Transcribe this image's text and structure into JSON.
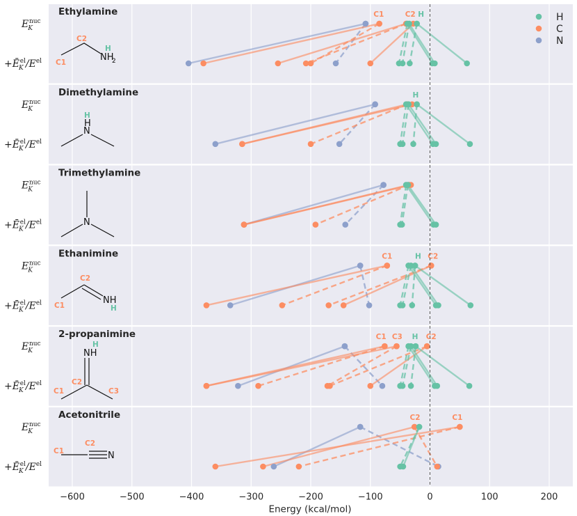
{
  "chart_data": {
    "type": "scatter",
    "xlabel": "Energy (kcal/mol)",
    "xlim": [
      -640,
      240
    ],
    "x_ticks": [
      -600,
      -500,
      -400,
      -300,
      -200,
      -100,
      0,
      100,
      200
    ],
    "x_tick_labels": [
      "−600",
      "−500",
      "−400",
      "−300",
      "−200",
      "−100",
      "0",
      "100",
      "200"
    ],
    "row_labels": {
      "top": "E",
      "top_sub": "K",
      "top_sup": "nuc",
      "bottom_prefix": "+Ē",
      "bottom_sub": "K",
      "bottom_sup": "el",
      "bottom_slash": "/E",
      "bottom_sup2": "el"
    },
    "legend": [
      {
        "label": "H",
        "color": "#66c2a5"
      },
      {
        "label": "C",
        "color": "#fc8d62"
      },
      {
        "label": "N",
        "color": "#8da0cb"
      }
    ],
    "colors": {
      "H": "#66c2a5",
      "C": "#fc8d62",
      "N": "#8da0cb"
    },
    "panels": [
      {
        "title": "Ethylamine",
        "structure": {
          "atoms": [
            "C1",
            "C2",
            "H",
            "NH",
            "2"
          ]
        },
        "top_labels": [
          {
            "text": "C1",
            "x": -86,
            "el": "C"
          },
          {
            "text": "C2",
            "x": -33,
            "el": "C"
          },
          {
            "text": "H",
            "x": -15,
            "el": "H"
          }
        ],
        "lines": [
          {
            "el": "N",
            "style": "solid",
            "top": -108,
            "bottom": -405
          },
          {
            "el": "N",
            "style": "dashed",
            "top": -108,
            "bottom": -158
          },
          {
            "el": "C",
            "style": "solid",
            "top": -85,
            "bottom": -380
          },
          {
            "el": "C",
            "style": "dashed",
            "top": -85,
            "bottom": -200
          },
          {
            "el": "C",
            "style": "solid",
            "top": -40,
            "bottom": -255
          },
          {
            "el": "C",
            "style": "dashed",
            "top": -40,
            "bottom": -208
          },
          {
            "el": "C",
            "style": "solid",
            "top": -28,
            "bottom": -100
          },
          {
            "el": "H",
            "style": "dashed",
            "top": -38,
            "bottom": -52
          },
          {
            "el": "H",
            "style": "dashed",
            "top": -35,
            "bottom": -46
          },
          {
            "el": "H",
            "style": "dashed",
            "top": -22,
            "bottom": -34
          },
          {
            "el": "H",
            "style": "solid",
            "top": -38,
            "bottom": 4
          },
          {
            "el": "H",
            "style": "solid",
            "top": -35,
            "bottom": 8
          },
          {
            "el": "H",
            "style": "solid",
            "top": -22,
            "bottom": 62
          }
        ]
      },
      {
        "title": "Dimethylamine",
        "structure": {
          "atoms": [
            "H",
            "H",
            "N"
          ]
        },
        "top_labels": [
          {
            "text": "H",
            "x": -24,
            "el": "H"
          }
        ],
        "lines": [
          {
            "el": "N",
            "style": "solid",
            "top": -92,
            "bottom": -360
          },
          {
            "el": "N",
            "style": "dashed",
            "top": -92,
            "bottom": -152
          },
          {
            "el": "C",
            "style": "solid",
            "top": -38,
            "bottom": -315
          },
          {
            "el": "C",
            "style": "dashed",
            "top": -38,
            "bottom": -200
          },
          {
            "el": "C",
            "style": "solid",
            "top": -30,
            "bottom": -315
          },
          {
            "el": "H",
            "style": "dashed",
            "top": -40,
            "bottom": -50
          },
          {
            "el": "H",
            "style": "dashed",
            "top": -36,
            "bottom": -46
          },
          {
            "el": "H",
            "style": "dashed",
            "top": -22,
            "bottom": -28
          },
          {
            "el": "H",
            "style": "solid",
            "top": -40,
            "bottom": 5
          },
          {
            "el": "H",
            "style": "solid",
            "top": -36,
            "bottom": 10
          },
          {
            "el": "H",
            "style": "solid",
            "top": -22,
            "bottom": 67
          }
        ]
      },
      {
        "title": "Trimethylamine",
        "structure": {
          "atoms": [
            "N"
          ]
        },
        "top_labels": [],
        "lines": [
          {
            "el": "N",
            "style": "solid",
            "top": -78,
            "bottom": -312
          },
          {
            "el": "N",
            "style": "dashed",
            "top": -78,
            "bottom": -142
          },
          {
            "el": "C",
            "style": "solid",
            "top": -35,
            "bottom": -312
          },
          {
            "el": "C",
            "style": "dashed",
            "top": -35,
            "bottom": -192
          },
          {
            "el": "C",
            "style": "solid",
            "top": -32,
            "bottom": -312
          },
          {
            "el": "H",
            "style": "dashed",
            "top": -40,
            "bottom": -50
          },
          {
            "el": "H",
            "style": "dashed",
            "top": -37,
            "bottom": -47
          },
          {
            "el": "H",
            "style": "solid",
            "top": -40,
            "bottom": 6
          },
          {
            "el": "H",
            "style": "solid",
            "top": -37,
            "bottom": 10
          }
        ]
      },
      {
        "title": "Ethanimine",
        "structure": {
          "atoms": [
            "C1",
            "C2",
            "NH",
            "H"
          ]
        },
        "top_labels": [
          {
            "text": "C1",
            "x": -72,
            "el": "C"
          },
          {
            "text": "H",
            "x": -20,
            "el": "H"
          },
          {
            "text": "C2",
            "x": 5,
            "el": "C"
          }
        ],
        "lines": [
          {
            "el": "N",
            "style": "solid",
            "top": -117,
            "bottom": -335
          },
          {
            "el": "N",
            "style": "dashed",
            "top": -117,
            "bottom": -102
          },
          {
            "el": "C",
            "style": "solid",
            "top": -72,
            "bottom": -375
          },
          {
            "el": "C",
            "style": "dashed",
            "top": -72,
            "bottom": -248
          },
          {
            "el": "C",
            "style": "solid",
            "top": 2,
            "bottom": -145
          },
          {
            "el": "C",
            "style": "dashed",
            "top": 2,
            "bottom": -170
          },
          {
            "el": "H",
            "style": "dashed",
            "top": -36,
            "bottom": -50
          },
          {
            "el": "H",
            "style": "dashed",
            "top": -32,
            "bottom": -46
          },
          {
            "el": "H",
            "style": "dashed",
            "top": -25,
            "bottom": -30
          },
          {
            "el": "H",
            "style": "solid",
            "top": -36,
            "bottom": 10
          },
          {
            "el": "H",
            "style": "solid",
            "top": -32,
            "bottom": 14
          },
          {
            "el": "H",
            "style": "solid",
            "top": -25,
            "bottom": 68
          }
        ]
      },
      {
        "title": "2-propanimine",
        "structure": {
          "atoms": [
            "H",
            "NH",
            "C2",
            "C1",
            "C3"
          ]
        },
        "top_labels": [
          {
            "text": "C1",
            "x": -82,
            "el": "C"
          },
          {
            "text": "C3",
            "x": -55,
            "el": "C"
          },
          {
            "text": "H",
            "x": -25,
            "el": "H"
          },
          {
            "text": "C2",
            "x": 2,
            "el": "C"
          }
        ],
        "lines": [
          {
            "el": "N",
            "style": "solid",
            "top": -143,
            "bottom": -322
          },
          {
            "el": "N",
            "style": "dashed",
            "top": -143,
            "bottom": -80
          },
          {
            "el": "C",
            "style": "solid",
            "top": -76,
            "bottom": -375
          },
          {
            "el": "C",
            "style": "dashed",
            "top": -76,
            "bottom": -288
          },
          {
            "el": "C",
            "style": "solid",
            "top": -56,
            "bottom": -375
          },
          {
            "el": "C",
            "style": "dashed",
            "top": -56,
            "bottom": -172
          },
          {
            "el": "C",
            "style": "solid",
            "top": -5,
            "bottom": -100
          },
          {
            "el": "C",
            "style": "dashed",
            "top": -5,
            "bottom": -168
          },
          {
            "el": "H",
            "style": "dashed",
            "top": -36,
            "bottom": -50
          },
          {
            "el": "H",
            "style": "dashed",
            "top": -32,
            "bottom": -46
          },
          {
            "el": "H",
            "style": "dashed",
            "top": -24,
            "bottom": -32
          },
          {
            "el": "H",
            "style": "solid",
            "top": -36,
            "bottom": 8
          },
          {
            "el": "H",
            "style": "solid",
            "top": -32,
            "bottom": 12
          },
          {
            "el": "H",
            "style": "solid",
            "top": -24,
            "bottom": 66
          }
        ]
      },
      {
        "title": "Acetonitrile",
        "structure": {
          "atoms": [
            "C1",
            "C2",
            "N"
          ]
        },
        "top_labels": [
          {
            "text": "C2",
            "x": -25,
            "el": "C"
          },
          {
            "text": "C1",
            "x": 46,
            "el": "C"
          }
        ],
        "lines": [
          {
            "el": "N",
            "style": "solid",
            "top": -117,
            "bottom": -262
          },
          {
            "el": "N",
            "style": "dashed",
            "top": -117,
            "bottom": 14
          },
          {
            "el": "C",
            "style": "solid",
            "top": 50,
            "bottom": -360
          },
          {
            "el": "C",
            "style": "dashed",
            "top": 50,
            "bottom": -220
          },
          {
            "el": "C",
            "style": "solid",
            "top": -26,
            "bottom": -280
          },
          {
            "el": "C",
            "style": "dashed",
            "top": -26,
            "bottom": 12
          },
          {
            "el": "H",
            "style": "dashed",
            "top": -18,
            "bottom": -50
          },
          {
            "el": "H",
            "style": "solid",
            "top": -18,
            "bottom": -45
          }
        ]
      }
    ]
  }
}
